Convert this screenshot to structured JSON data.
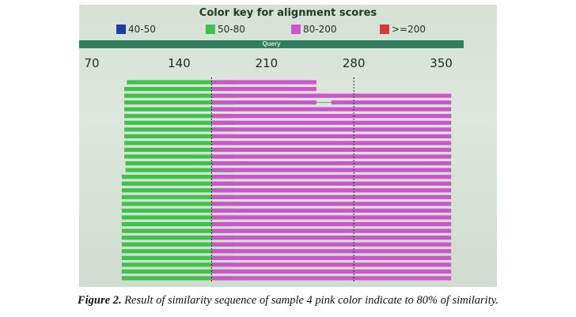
{
  "chart_data": {
    "type": "alignment-graphic",
    "title": "Color key for alignment scores",
    "legend": [
      {
        "label": "40-50",
        "color": "#1a3fa8"
      },
      {
        "label": "50-80",
        "color": "#3ec24a"
      },
      {
        "label": "80-200",
        "color": "#cc55cc"
      },
      {
        "label": ">=200",
        "color": "#d63a3a"
      }
    ],
    "axis_label": "Query",
    "x_ticks": [
      70,
      140,
      210,
      280,
      350
    ],
    "xlim": [
      63,
      368
    ],
    "hits": [
      {
        "segments": [
          [
            98,
            184,
            1
          ],
          [
            166,
            250,
            2
          ]
        ]
      },
      {
        "segments": [
          [
            96,
            184,
            1
          ],
          [
            166,
            250,
            2
          ]
        ]
      },
      {
        "segments": [
          [
            96,
            184,
            1
          ],
          [
            166,
            250,
            2
          ],
          [
            230,
            358,
            2
          ]
        ]
      },
      {
        "segments": [
          [
            96,
            184,
            1
          ],
          [
            166,
            250,
            2
          ],
          [
            262,
            358,
            2
          ]
        ]
      },
      {
        "segments": [
          [
            96,
            184,
            1
          ],
          [
            166,
            358,
            2
          ]
        ]
      },
      {
        "segments": [
          [
            96,
            184,
            1
          ],
          [
            166,
            358,
            2
          ]
        ]
      },
      {
        "segments": [
          [
            96,
            184,
            1
          ],
          [
            166,
            358,
            2
          ]
        ]
      },
      {
        "segments": [
          [
            96,
            184,
            1
          ],
          [
            166,
            358,
            2
          ]
        ]
      },
      {
        "segments": [
          [
            96,
            184,
            1
          ],
          [
            166,
            358,
            2
          ]
        ]
      },
      {
        "segments": [
          [
            96,
            184,
            1
          ],
          [
            166,
            358,
            2
          ]
        ]
      },
      {
        "segments": [
          [
            96,
            184,
            1
          ],
          [
            166,
            358,
            2
          ]
        ]
      },
      {
        "segments": [
          [
            96,
            184,
            1
          ],
          [
            166,
            358,
            2
          ]
        ]
      },
      {
        "segments": [
          [
            97,
            184,
            1
          ],
          [
            166,
            358,
            2
          ]
        ]
      },
      {
        "segments": [
          [
            97,
            184,
            1
          ],
          [
            166,
            358,
            2
          ]
        ]
      },
      {
        "segments": [
          [
            94,
            184,
            1
          ],
          [
            166,
            358,
            2
          ]
        ]
      },
      {
        "segments": [
          [
            94,
            184,
            1
          ],
          [
            166,
            358,
            2
          ]
        ]
      },
      {
        "segments": [
          [
            94,
            184,
            1
          ],
          [
            166,
            358,
            2
          ]
        ]
      },
      {
        "segments": [
          [
            94,
            184,
            1
          ],
          [
            166,
            358,
            2
          ]
        ]
      },
      {
        "segments": [
          [
            94,
            184,
            1
          ],
          [
            166,
            358,
            2
          ]
        ]
      },
      {
        "segments": [
          [
            94,
            184,
            1
          ],
          [
            166,
            358,
            2
          ]
        ]
      },
      {
        "segments": [
          [
            94,
            184,
            1
          ],
          [
            166,
            358,
            2
          ]
        ]
      },
      {
        "segments": [
          [
            94,
            184,
            1
          ],
          [
            166,
            358,
            2
          ]
        ]
      },
      {
        "segments": [
          [
            94,
            184,
            1
          ],
          [
            166,
            358,
            2
          ]
        ]
      },
      {
        "segments": [
          [
            94,
            184,
            1
          ],
          [
            166,
            358,
            2
          ]
        ]
      },
      {
        "segments": [
          [
            94,
            184,
            1
          ],
          [
            166,
            358,
            2
          ]
        ]
      },
      {
        "segments": [
          [
            94,
            184,
            1
          ],
          [
            166,
            358,
            2
          ]
        ]
      },
      {
        "segments": [
          [
            94,
            184,
            1
          ],
          [
            166,
            358,
            2
          ]
        ]
      },
      {
        "segments": [
          [
            94,
            184,
            1
          ],
          [
            166,
            358,
            2
          ]
        ]
      },
      {
        "segments": [
          [
            94,
            184,
            1
          ],
          [
            166,
            358,
            2
          ]
        ]
      },
      {
        "segments": [
          [
            94,
            184,
            1
          ],
          [
            166,
            358,
            2
          ]
        ]
      }
    ]
  },
  "caption": {
    "label": "Figure 2.",
    "text": " Result of similarity sequence of sample 4 pink color indicate to 80% of similarity."
  }
}
